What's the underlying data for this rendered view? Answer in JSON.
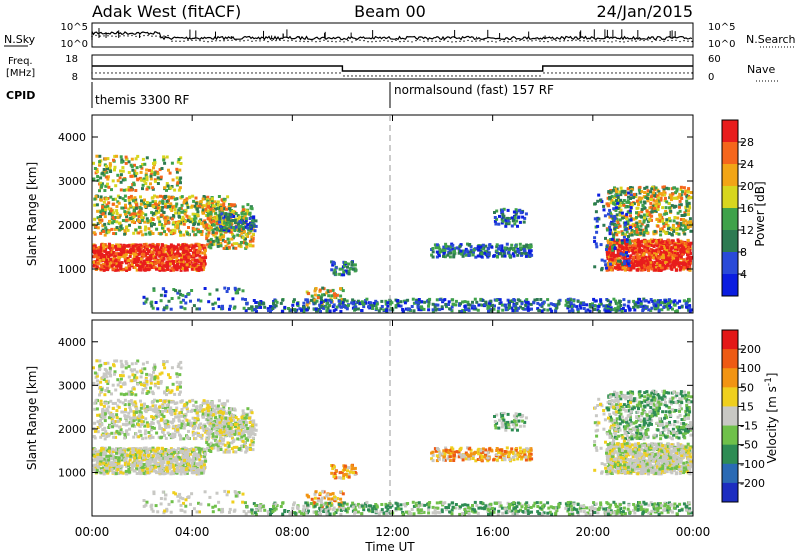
{
  "header": {
    "station": "Adak West (fitACF)",
    "beam": "Beam 00",
    "date": "24/Jan/2015"
  },
  "top_panel": {
    "left_label": "N.Sky",
    "left_ticks": [
      "10^5",
      "10^0"
    ],
    "right_ticks": [
      "10^5",
      "10^0"
    ],
    "right_label": "N.Search"
  },
  "freq_panel": {
    "left_label_1": "Freq.",
    "left_label_2": "[MHz]",
    "left_ticks": [
      "18",
      "8"
    ],
    "right_ticks": [
      "60",
      "0"
    ],
    "right_label": "Nave"
  },
  "cpid": {
    "label": "CPID",
    "mode1": "themis 3300 RF",
    "mode2": "normalsound (fast) 157 RF"
  },
  "chart_data": [
    {
      "type": "heatmap",
      "name": "power",
      "ylabel": "Slant Range [km]",
      "ylim": [
        0,
        4500
      ],
      "yticks": [
        "1000",
        "2000",
        "3000",
        "4000"
      ],
      "colorbar": {
        "label": "Power [dB]",
        "ticks": [
          "4",
          "8",
          "12",
          "16",
          "20",
          "24",
          "28"
        ],
        "colors": [
          "#0b1de0",
          "#2a4ad8",
          "#2d7a52",
          "#3fa24a",
          "#d7d61e",
          "#f2a516",
          "#f5661c",
          "#e81d1d"
        ]
      }
    },
    {
      "type": "heatmap",
      "name": "velocity",
      "xlabel": "Time UT",
      "ylabel": "Slant Range [km]",
      "ylim": [
        0,
        4500
      ],
      "yticks": [
        "1000",
        "2000",
        "3000",
        "4000"
      ],
      "xticks": [
        "00:00",
        "04:00",
        "08:00",
        "12:00",
        "16:00",
        "20:00",
        "00:00"
      ],
      "colorbar": {
        "label": "Velocity [m s^-1]",
        "ticks": [
          "200",
          "100",
          "50",
          "15",
          "-15",
          "-50",
          "-100",
          "-200"
        ],
        "colors": [
          "#1c2dc0",
          "#2a6ab4",
          "#2e8c54",
          "#6fc04a",
          "#c8c8c4",
          "#efcf1e",
          "#f29412",
          "#ee5a14",
          "#e41818"
        ]
      }
    }
  ]
}
